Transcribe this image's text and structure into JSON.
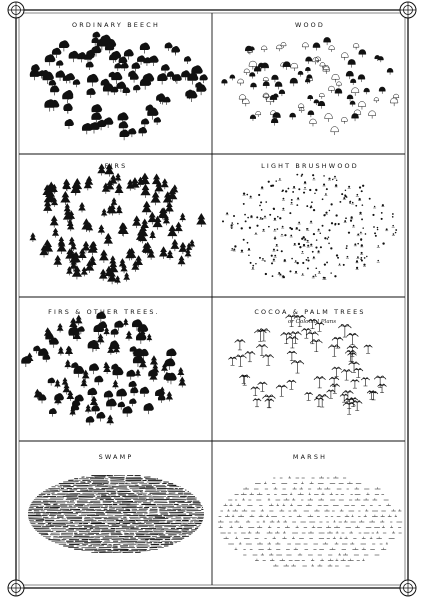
{
  "plate": {
    "panels": [
      {
        "title": "ORDINARY BEECH",
        "subtitle": "",
        "symbol": "beech"
      },
      {
        "title": "WOOD",
        "subtitle": "",
        "symbol": "wood"
      },
      {
        "title": "FIRS",
        "subtitle": "",
        "symbol": "fir"
      },
      {
        "title": "LIGHT BRUSHWOOD",
        "subtitle": "",
        "symbol": "brushwood"
      },
      {
        "title": "FIRS & OTHER TREES.",
        "subtitle": "",
        "symbol": "mixed"
      },
      {
        "title": "COCOA & PALM TREES",
        "subtitle": "or Colonial Plans",
        "symbol": "palm"
      },
      {
        "title": "SWAMP",
        "subtitle": "",
        "symbol": "swamp"
      },
      {
        "title": "MARSH",
        "subtitle": "",
        "symbol": "marsh"
      }
    ],
    "ink_color": "#111111",
    "paper_color": "#ffffff"
  }
}
